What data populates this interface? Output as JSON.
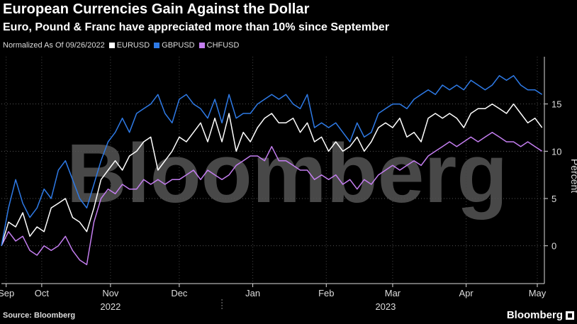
{
  "header": {
    "title": "European Currencies Gain Against the Dollar",
    "subtitle": "Euro, Pound & Franc have appreciated more than 10% since September"
  },
  "legend": {
    "prefix": "Normalized As Of 09/26/2022",
    "items": [
      {
        "label": "EURUSD",
        "color": "#ffffff"
      },
      {
        "label": "GBPUSD",
        "color": "#2e7ae6"
      },
      {
        "label": "CHFUSD",
        "color": "#c47ef0"
      }
    ]
  },
  "footer": {
    "source": "Source: Bloomberg",
    "brand": "Bloomberg"
  },
  "watermark": "Bloomberg",
  "chart_data": {
    "type": "line",
    "title": "European Currencies Gain Against the Dollar",
    "ylabel": "Percent",
    "ylim": [
      -4,
      20
    ],
    "yticks": [
      0,
      5,
      10,
      15
    ],
    "xlim": [
      0,
      226
    ],
    "month_ticks": [
      {
        "label": "Sep",
        "x": 2
      },
      {
        "label": "Oct",
        "x": 17
      },
      {
        "label": "Nov",
        "x": 46
      },
      {
        "label": "Dec",
        "x": 75
      },
      {
        "label": "Jan",
        "x": 106
      },
      {
        "label": "Feb",
        "x": 137
      },
      {
        "label": "Mar",
        "x": 165
      },
      {
        "label": "Apr",
        "x": 196
      },
      {
        "label": "May",
        "x": 226
      }
    ],
    "year_labels": [
      {
        "label": "2022",
        "x": 46
      },
      {
        "label": "2023",
        "x": 162
      }
    ],
    "year_divider_x": 93,
    "x": [
      0,
      3,
      6,
      9,
      12,
      15,
      18,
      21,
      24,
      27,
      30,
      33,
      36,
      39,
      42,
      45,
      48,
      51,
      54,
      57,
      60,
      63,
      66,
      69,
      72,
      75,
      78,
      81,
      84,
      87,
      90,
      93,
      96,
      99,
      102,
      105,
      108,
      111,
      114,
      117,
      120,
      123,
      126,
      129,
      132,
      135,
      138,
      141,
      144,
      147,
      150,
      153,
      156,
      159,
      162,
      165,
      168,
      171,
      174,
      177,
      180,
      183,
      186,
      189,
      192,
      195,
      198,
      201,
      204,
      207,
      210,
      213,
      216,
      219,
      222,
      225,
      228
    ],
    "series": [
      {
        "name": "EURUSD",
        "color": "#ffffff",
        "values": [
          0,
          2.5,
          2,
          3.5,
          1,
          2,
          1.5,
          4,
          4.5,
          5,
          3,
          2.5,
          1.5,
          4,
          7,
          8,
          9,
          8,
          9.5,
          10,
          11,
          11.5,
          8,
          9,
          10,
          11.5,
          11,
          12,
          13,
          11,
          13.5,
          11,
          14,
          10,
          12,
          11,
          12.5,
          13.5,
          14,
          13,
          13,
          13.5,
          12,
          13,
          11,
          11.5,
          10,
          11,
          10,
          10.5,
          11.5,
          10,
          11,
          12.5,
          13,
          12.5,
          13.5,
          11.5,
          12,
          11,
          13.5,
          14,
          13.5,
          14,
          13.5,
          12.5,
          14,
          14.5,
          14.5,
          15,
          14.5,
          14,
          15,
          14,
          13,
          13.5,
          12.5
        ]
      },
      {
        "name": "GBPUSD",
        "color": "#2e7ae6",
        "values": [
          0,
          4,
          7,
          4.5,
          3,
          4,
          6,
          5,
          8,
          9,
          7,
          5,
          4,
          6.5,
          9,
          11,
          12,
          13.5,
          12,
          14,
          14.5,
          15,
          16,
          14,
          13,
          15.5,
          16,
          15,
          14.5,
          13.5,
          15.5,
          13,
          16,
          13.5,
          14,
          14,
          15,
          15.5,
          16,
          15.5,
          16,
          15,
          14.5,
          16,
          12.5,
          13,
          12.5,
          13,
          12,
          11,
          13,
          11.5,
          12,
          14,
          14.5,
          15,
          15,
          14.5,
          15.5,
          16,
          16.5,
          16,
          17,
          16.5,
          17,
          16.5,
          17.5,
          17,
          16.5,
          17,
          18,
          17.5,
          18,
          17,
          16.5,
          16.5,
          16
        ]
      },
      {
        "name": "CHFUSD",
        "color": "#c47ef0",
        "values": [
          0,
          1.5,
          0.5,
          1,
          -0.5,
          -1,
          0,
          -0.5,
          0,
          1,
          -0.5,
          -1.5,
          -2,
          2.5,
          5,
          6,
          5.5,
          6.5,
          6,
          6,
          7,
          6.5,
          7,
          6.5,
          7,
          7,
          7.5,
          8,
          7,
          8,
          7.5,
          7,
          7.5,
          8.5,
          9,
          9.5,
          9.5,
          9,
          10.5,
          9,
          9,
          8.5,
          8,
          8,
          7,
          7.5,
          7,
          7.5,
          6.5,
          7,
          6,
          7,
          6.5,
          7.5,
          8,
          8.5,
          8,
          8.5,
          9,
          8.5,
          9.5,
          10,
          10.5,
          11,
          10.5,
          11,
          11.5,
          11,
          11.5,
          12,
          11.5,
          11,
          11,
          10.5,
          11,
          10.5,
          10
        ]
      }
    ]
  }
}
